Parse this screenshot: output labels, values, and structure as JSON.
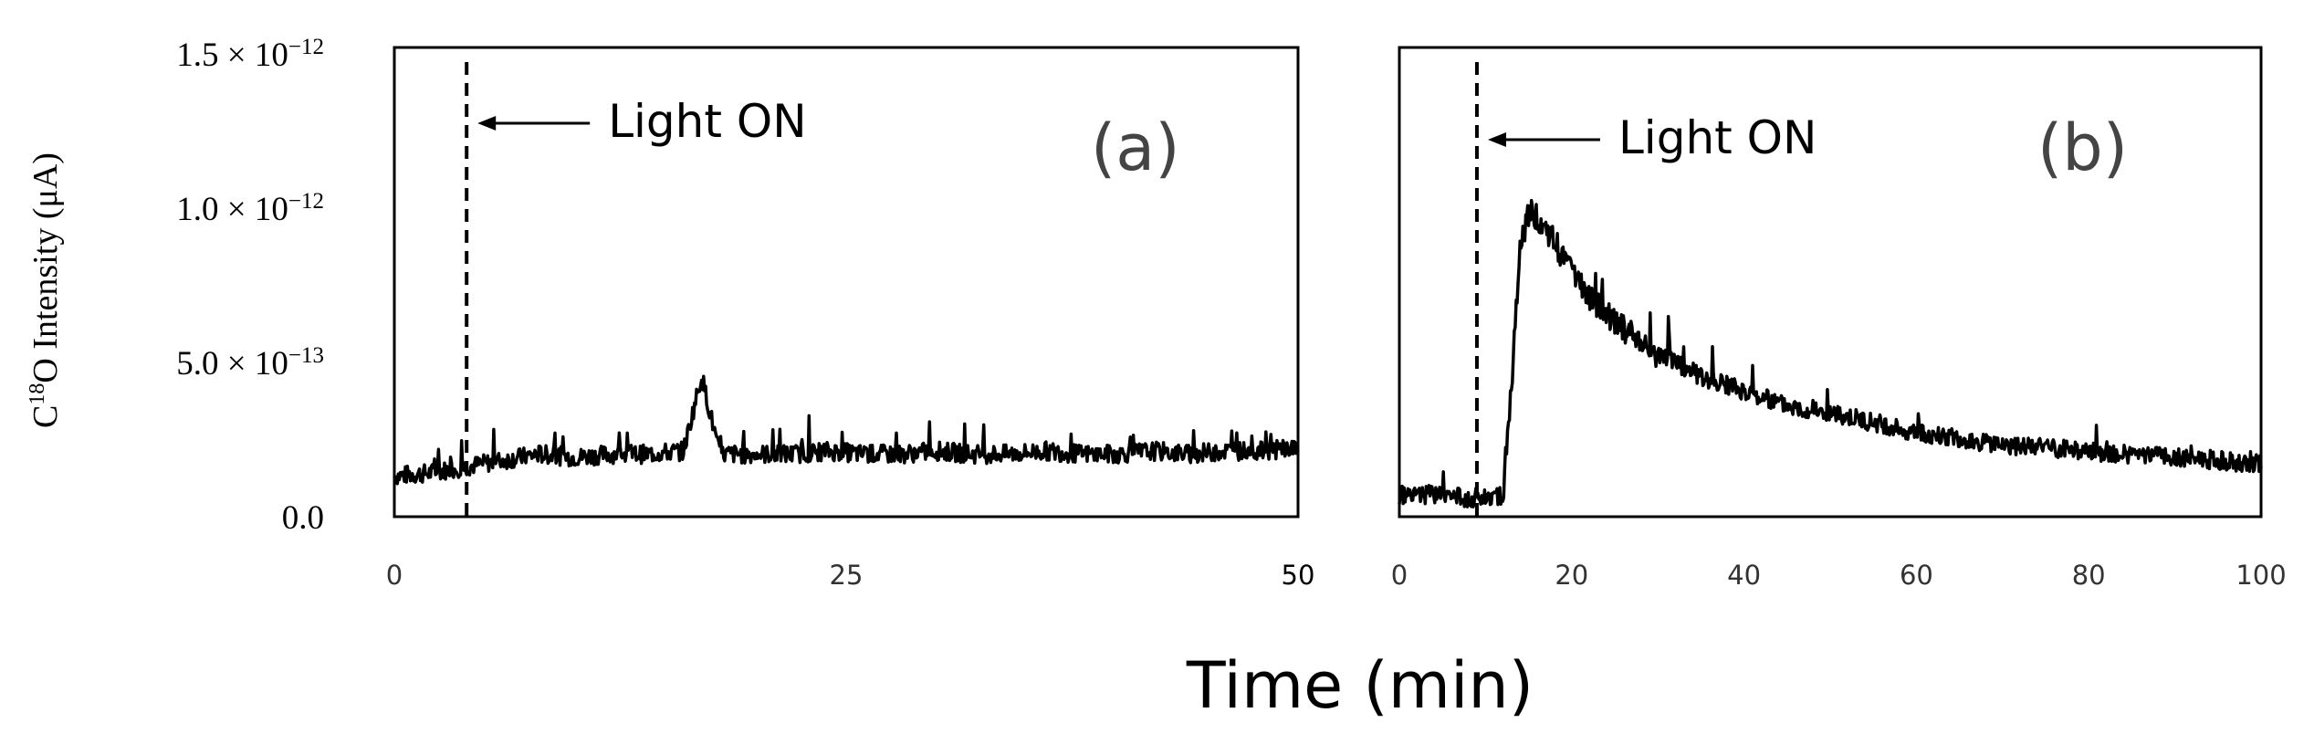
{
  "figure": {
    "ylabel_prefix": "C",
    "ylabel_sup": "18",
    "ylabel_suffix": "O Intensity (μA)",
    "xlabel": "Time (min)"
  },
  "y_ticks": [
    {
      "mantissa": "0.0",
      "exp": ""
    },
    {
      "mantissa": "5.0 × 10",
      "exp": "−13"
    },
    {
      "mantissa": "1.0 × 10",
      "exp": "−12"
    },
    {
      "mantissa": "1.5 × 10",
      "exp": "−12"
    }
  ],
  "chart_data": [
    {
      "type": "line",
      "panel_label": "(a)",
      "annotation": "Light ON",
      "light_on_x": 4,
      "xlim": [
        0,
        50
      ],
      "ylim": [
        0,
        1.5e-12
      ],
      "x_ticks": [
        "0",
        "25",
        "50"
      ],
      "y_ticks": [
        0,
        5e-13,
        1e-12,
        1.5e-12
      ],
      "grid": false,
      "series": [
        {
          "x": [
            0,
            2,
            4,
            6,
            8,
            10,
            12,
            14,
            16,
            17,
            18,
            20,
            22,
            24,
            26,
            28,
            30,
            32,
            34,
            36,
            38,
            40,
            42,
            44,
            46,
            48,
            50
          ],
          "values": [
            1.3e-13,
            1.4e-13,
            1.6e-13,
            1.8e-13,
            2e-13,
            1.9e-13,
            2e-13,
            2e-13,
            2.1e-13,
            4.5e-13,
            2e-13,
            2e-13,
            2e-13,
            2.1e-13,
            2e-13,
            2e-13,
            2.1e-13,
            2e-13,
            2e-13,
            2.1e-13,
            2e-13,
            2e-13,
            2.1e-13,
            2e-13,
            2.1e-13,
            2.1e-13,
            2.2e-13
          ]
        }
      ]
    },
    {
      "type": "line",
      "panel_label": "(b)",
      "annotation": "Light ON",
      "light_on_x": 9,
      "xlim": [
        0,
        100
      ],
      "ylim": [
        0,
        1.5e-12
      ],
      "x_ticks": [
        "0",
        "20",
        "40",
        "60",
        "80",
        "100"
      ],
      "y_ticks": [
        0,
        5e-13,
        1e-12,
        1.5e-12
      ],
      "grid": false,
      "series": [
        {
          "x": [
            0,
            4,
            8,
            12,
            13,
            14,
            15,
            16,
            18,
            20,
            22,
            25,
            30,
            35,
            40,
            45,
            50,
            55,
            60,
            65,
            70,
            75,
            80,
            85,
            90,
            95,
            100
          ],
          "values": [
            7e-14,
            7e-14,
            6e-14,
            7e-14,
            4e-13,
            8.5e-13,
            9.7e-13,
            9.6e-13,
            8.8e-13,
            7.8e-13,
            7e-13,
            6.2e-13,
            5.2e-13,
            4.5e-13,
            4e-13,
            3.6e-13,
            3.3e-13,
            3e-13,
            2.7e-13,
            2.5e-13,
            2.3e-13,
            2.2e-13,
            2.1e-13,
            2e-13,
            1.9e-13,
            1.8e-13,
            1.7e-13
          ]
        }
      ]
    }
  ]
}
